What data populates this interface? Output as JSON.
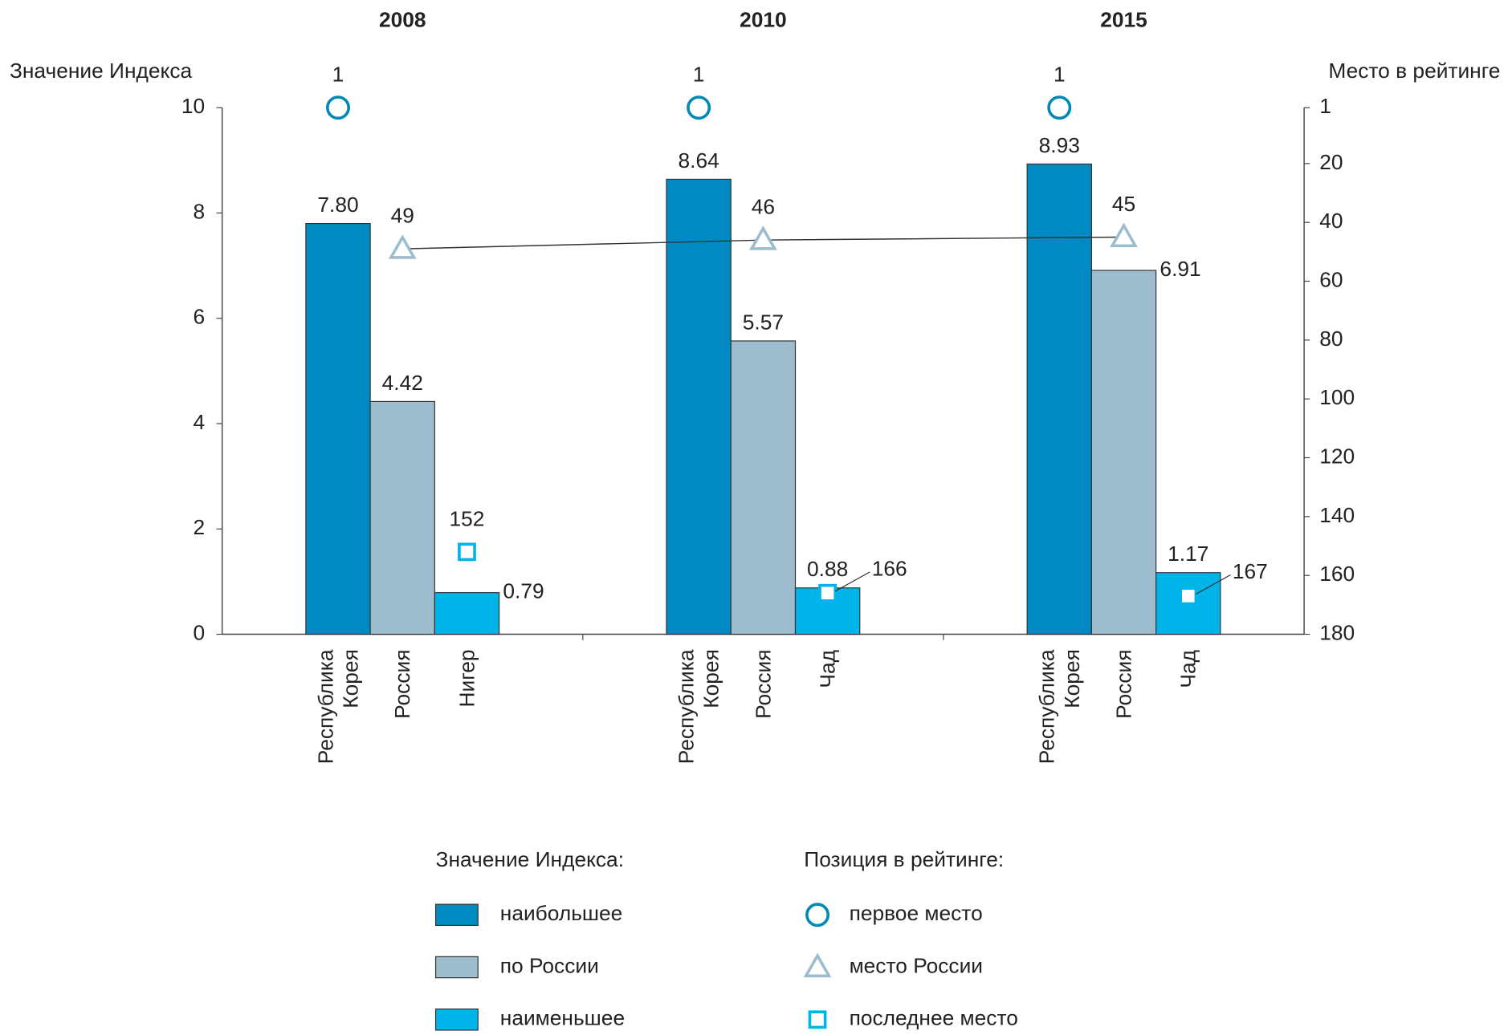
{
  "chart_data": {
    "type": "bar",
    "y_label": "Значение Индекса",
    "y2_label": "Место в рейтинге",
    "groups": [
      "2008",
      "2010",
      "2015"
    ],
    "categories": [
      [
        "Республика Корея",
        "Россия",
        "Нигер"
      ],
      [
        "Республика Корея",
        "Россия",
        "Чад"
      ],
      [
        "Республика Корея",
        "Россия",
        "Чад"
      ]
    ],
    "ylim": [
      0,
      10
    ],
    "yticks": [
      0,
      2,
      4,
      6,
      8,
      10
    ],
    "y2lim": [
      1,
      180
    ],
    "y2ticks": [
      1,
      20,
      40,
      60,
      80,
      100,
      120,
      140,
      160,
      180
    ],
    "y2_inverted": true,
    "legend_titles": [
      "Значение Индекса:",
      "Позиция в рейтинге:"
    ],
    "series": [
      {
        "name": "наибольшее",
        "color": "#0089c2",
        "values": [
          7.8,
          8.64,
          8.93
        ],
        "value_labels": [
          "7.80",
          "8.64",
          "8.93"
        ]
      },
      {
        "name": "по России",
        "color": "#9dbdcf",
        "values": [
          4.42,
          5.57,
          6.91
        ],
        "value_labels": [
          "4.42",
          "5.57",
          "6.91"
        ]
      },
      {
        "name": "наименьшее",
        "color": "#00b4ea",
        "values": [
          0.79,
          0.88,
          1.17
        ],
        "value_labels": [
          "0.79",
          "0.88",
          "1.17"
        ]
      }
    ],
    "rank_series": [
      {
        "name": "первое место",
        "color": "#0089b5",
        "marker": "circle",
        "axis": "y2",
        "values": [
          1,
          1,
          1
        ]
      },
      {
        "name": "место России",
        "color": "#9dbdcf",
        "marker": "triangle",
        "axis": "y2",
        "line": true,
        "values": [
          49,
          46,
          45
        ]
      },
      {
        "name": "последнее место",
        "color": "#00b4ea",
        "marker": "square",
        "axis": "y2",
        "values": [
          152,
          166,
          167
        ]
      }
    ]
  }
}
